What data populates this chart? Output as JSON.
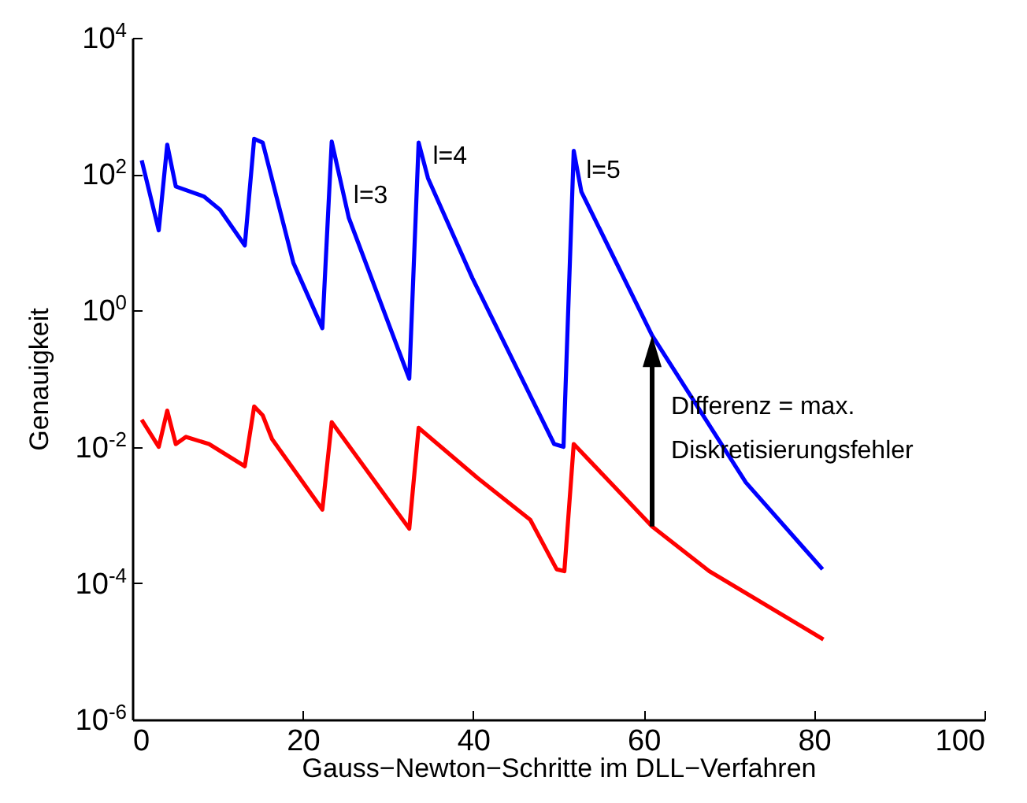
{
  "chart_data": {
    "type": "line",
    "xlabel": "Gauss−Newton−Schritte im DLL−Verfahren",
    "ylabel": "Genauigkeit",
    "log": "y",
    "grid": false,
    "marker": "none",
    "line_style": "solid",
    "xlim": [
      0,
      100
    ],
    "xticks": [
      0,
      20,
      40,
      60,
      80,
      100
    ],
    "ylim": [
      1e-06,
      10000
    ],
    "yticks": [
      {
        "value": 1e-06,
        "label": "10$^{-6}$"
      },
      {
        "value": 0.0001,
        "label": "10$^{-4}$"
      },
      {
        "value": 0.01,
        "label": "10$^{-2}$"
      },
      {
        "value": 1,
        "label": "10$^{0}$"
      },
      {
        "value": 100,
        "label": "10$^{2}$"
      },
      {
        "value": 10000,
        "label": "10$^{4}$"
      }
    ],
    "series": [
      {
        "color": "#0000ff",
        "x": [
          1.1,
          3.1,
          4.1,
          5.1,
          8.4,
          10.3,
          13.2,
          14.3,
          15.3,
          18.9,
          22.3,
          23.4,
          25.4,
          32.5,
          33.6,
          34.7,
          39.9,
          49.5,
          50.6,
          51.8,
          52.7,
          61,
          72,
          81
        ],
        "values": [
          160,
          15,
          270,
          66,
          47,
          30,
          9,
          330,
          290,
          5,
          0.55,
          300,
          23,
          0.1,
          290,
          87,
          3,
          0.011,
          0.01,
          220,
          55,
          0.43,
          0.003,
          0.00016
        ]
      },
      {
        "color": "#ff0000",
        "x": [
          1.1,
          3.1,
          4.1,
          5.1,
          6.3,
          9,
          13.2,
          14.3,
          15.3,
          16.4,
          22.3,
          23.4,
          32.5,
          33.6,
          40.5,
          46.7,
          49.8,
          50.7,
          51.8,
          61,
          67.7,
          81.1
        ],
        "values": [
          0.025,
          0.01,
          0.034,
          0.011,
          0.014,
          0.011,
          0.0052,
          0.039,
          0.029,
          0.013,
          0.0012,
          0.023,
          0.00063,
          0.019,
          0.0035,
          0.00085,
          0.00016,
          0.00015,
          0.011,
          0.00068,
          0.00015,
          1.5e-05
        ]
      }
    ],
    "annotations": [
      {
        "text": "l=3",
        "x": 25.4,
        "y": 23
      },
      {
        "text": "l=4",
        "x": 34.7,
        "y": 87
      },
      {
        "text": "l=5",
        "x": 52.7,
        "y": 55
      },
      {
        "text": "Differenz = max.\nDiskretisierungsfehler",
        "x": 61,
        "y": 0.43
      }
    ]
  }
}
